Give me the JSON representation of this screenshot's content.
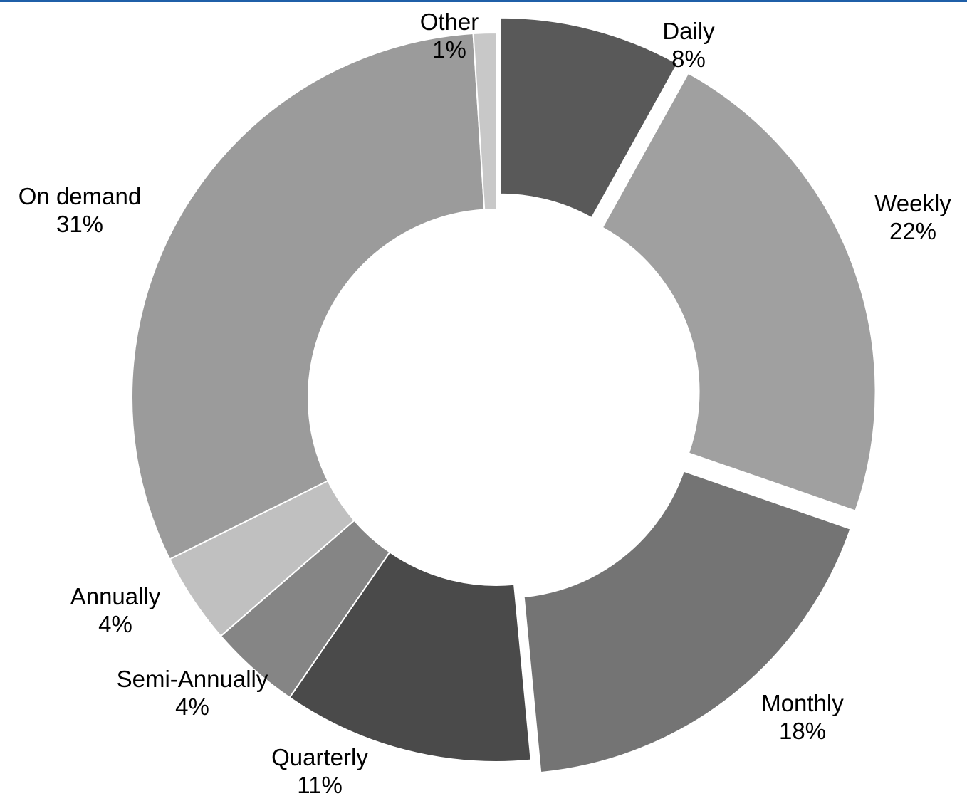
{
  "colors": {
    "top_rule": "#1f5fa8",
    "background": "#ffffff",
    "slice_border": "#ffffff"
  },
  "chart_data": {
    "type": "pie",
    "variant": "donut",
    "start_angle_deg": 0,
    "direction": "clockwise",
    "labels": [
      "Daily",
      "Weekly",
      "Monthly",
      "Quarterly",
      "Semi-Annually",
      "Annually",
      "On demand",
      "Other"
    ],
    "values": [
      8,
      22,
      18,
      11,
      4,
      4,
      31,
      1
    ],
    "value_labels": [
      "8%",
      "22%",
      "18%",
      "11%",
      "4%",
      "4%",
      "31%",
      "1%"
    ],
    "colors": [
      "#595959",
      "#a0a0a0",
      "#747474",
      "#4a4a4a",
      "#858585",
      "#c0c0c0",
      "#9b9b9b",
      "#c8c8c8"
    ],
    "exploded": [
      true,
      true,
      true,
      false,
      false,
      false,
      false,
      false
    ],
    "title": "",
    "legend": "none",
    "data_labels": "outside, category name and percentage"
  }
}
